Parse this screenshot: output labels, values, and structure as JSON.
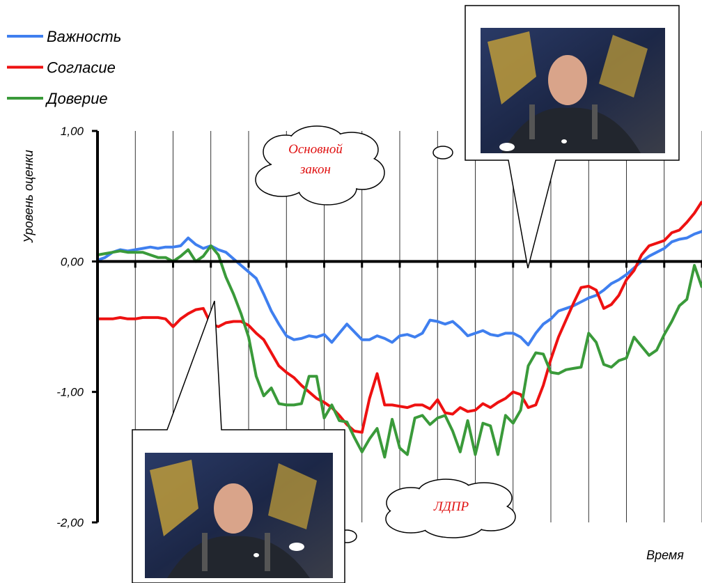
{
  "chart_data": {
    "type": "line",
    "y_label": "Уровень оценки",
    "x_label": "Время",
    "ylim": [
      -2,
      1
    ],
    "yticks": [
      {
        "value": 1,
        "label": "1,00"
      },
      {
        "value": 0,
        "label": "0,00"
      },
      {
        "value": -1,
        "label": "-1,00"
      },
      {
        "value": -2,
        "label": "-2,00"
      }
    ],
    "grid": true,
    "legend": "top-left",
    "annotations": [
      {
        "lines": [
          "Основной",
          "закон"
        ]
      },
      {
        "lines": [
          "ЛДПР"
        ]
      }
    ],
    "series": [
      {
        "name": "Важность",
        "color": "#3f7fef",
        "values": [
          0.01,
          0.03,
          0.07,
          0.09,
          0.08,
          0.09,
          0.1,
          0.11,
          0.1,
          0.11,
          0.11,
          0.12,
          0.18,
          0.13,
          0.1,
          0.12,
          0.09,
          0.07,
          0.02,
          -0.03,
          -0.08,
          -0.13,
          -0.25,
          -0.38,
          -0.48,
          -0.57,
          -0.6,
          -0.59,
          -0.57,
          -0.58,
          -0.56,
          -0.62,
          -0.55,
          -0.48,
          -0.54,
          -0.6,
          -0.6,
          -0.57,
          -0.59,
          -0.62,
          -0.57,
          -0.56,
          -0.58,
          -0.55,
          -0.45,
          -0.46,
          -0.48,
          -0.46,
          -0.51,
          -0.57,
          -0.55,
          -0.53,
          -0.56,
          -0.57,
          -0.55,
          -0.55,
          -0.58,
          -0.64,
          -0.55,
          -0.48,
          -0.44,
          -0.38,
          -0.36,
          -0.34,
          -0.31,
          -0.28,
          -0.26,
          -0.22,
          -0.17,
          -0.14,
          -0.1,
          -0.05,
          0.0,
          0.04,
          0.07,
          0.1,
          0.15,
          0.17,
          0.18,
          0.21,
          0.23
        ]
      },
      {
        "name": "Согласие",
        "color": "#ee1111",
        "values": [
          -0.44,
          -0.44,
          -0.44,
          -0.43,
          -0.44,
          -0.44,
          -0.43,
          -0.43,
          -0.43,
          -0.44,
          -0.5,
          -0.44,
          -0.4,
          -0.37,
          -0.36,
          -0.48,
          -0.5,
          -0.47,
          -0.46,
          -0.46,
          -0.49,
          -0.55,
          -0.6,
          -0.7,
          -0.8,
          -0.85,
          -0.89,
          -0.95,
          -1.0,
          -1.05,
          -1.08,
          -1.12,
          -1.18,
          -1.25,
          -1.3,
          -1.31,
          -1.05,
          -0.86,
          -1.1,
          -1.1,
          -1.11,
          -1.12,
          -1.1,
          -1.1,
          -1.13,
          -1.06,
          -1.16,
          -1.17,
          -1.12,
          -1.15,
          -1.14,
          -1.09,
          -1.12,
          -1.08,
          -1.05,
          -1.0,
          -1.02,
          -1.12,
          -1.1,
          -0.95,
          -0.75,
          -0.58,
          -0.45,
          -0.32,
          -0.2,
          -0.19,
          -0.22,
          -0.36,
          -0.33,
          -0.26,
          -0.14,
          -0.07,
          0.05,
          0.12,
          0.14,
          0.16,
          0.22,
          0.24,
          0.3,
          0.37,
          0.46
        ]
      },
      {
        "name": "Доверие",
        "color": "#3a9a3a",
        "values": [
          0.05,
          0.06,
          0.07,
          0.08,
          0.07,
          0.07,
          0.07,
          0.05,
          0.03,
          0.03,
          0.0,
          0.04,
          0.09,
          0.0,
          0.04,
          0.12,
          0.05,
          -0.12,
          -0.25,
          -0.4,
          -0.58,
          -0.88,
          -1.03,
          -0.97,
          -1.09,
          -1.1,
          -1.1,
          -1.09,
          -0.88,
          -0.88,
          -1.2,
          -1.1,
          -1.22,
          -1.23,
          -1.35,
          -1.46,
          -1.36,
          -1.28,
          -1.5,
          -1.21,
          -1.43,
          -1.48,
          -1.2,
          -1.18,
          -1.25,
          -1.2,
          -1.18,
          -1.3,
          -1.46,
          -1.22,
          -1.48,
          -1.24,
          -1.26,
          -1.48,
          -1.18,
          -1.24,
          -1.14,
          -0.8,
          -0.7,
          -0.71,
          -0.85,
          -0.86,
          -0.83,
          -0.82,
          -0.81,
          -0.55,
          -0.62,
          -0.79,
          -0.81,
          -0.76,
          -0.74,
          -0.58,
          -0.65,
          -0.72,
          -0.68,
          -0.56,
          -0.46,
          -0.34,
          -0.29,
          -0.03,
          -0.2
        ]
      }
    ]
  }
}
